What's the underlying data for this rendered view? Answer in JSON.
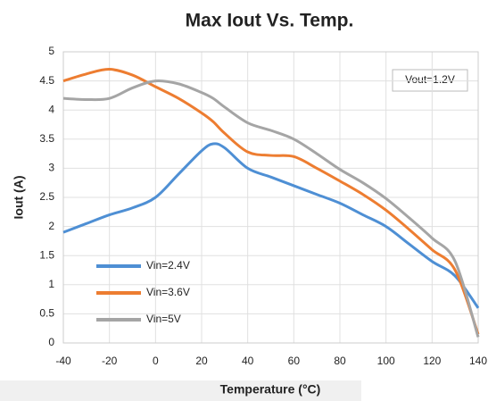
{
  "chart_data": {
    "type": "line",
    "title": "Max Iout Vs. Temp.",
    "x_label": "Temperature (°C)",
    "y_label": "Iout (A)",
    "annotation": "Vout=1.2V",
    "x": [
      -40,
      -30,
      -20,
      -10,
      0,
      10,
      20,
      25,
      30,
      40,
      50,
      60,
      70,
      80,
      90,
      100,
      110,
      120,
      130,
      140
    ],
    "series": [
      {
        "name": "Vin=2.4V",
        "color": "#4e8fd4",
        "values": [
          1.9,
          2.05,
          2.2,
          2.32,
          2.5,
          2.9,
          3.3,
          3.42,
          3.35,
          3.0,
          2.85,
          2.7,
          2.55,
          2.4,
          2.2,
          2.0,
          1.7,
          1.4,
          1.15,
          0.6
        ]
      },
      {
        "name": "Vin=3.6V",
        "color": "#ed7d31",
        "values": [
          4.5,
          4.62,
          4.7,
          4.6,
          4.4,
          4.2,
          3.95,
          3.8,
          3.6,
          3.28,
          3.22,
          3.2,
          3.0,
          2.78,
          2.55,
          2.28,
          1.95,
          1.6,
          1.25,
          0.15
        ]
      },
      {
        "name": "Vin=5V",
        "color": "#a5a5a5",
        "values": [
          4.2,
          4.18,
          4.2,
          4.38,
          4.5,
          4.45,
          4.3,
          4.2,
          4.05,
          3.78,
          3.65,
          3.5,
          3.25,
          2.98,
          2.75,
          2.48,
          2.15,
          1.8,
          1.4,
          0.1
        ]
      }
    ],
    "xlim": [
      -40,
      140
    ],
    "xticks": [
      -40,
      -20,
      0,
      20,
      40,
      60,
      80,
      100,
      120,
      140
    ],
    "ylim": [
      0,
      5
    ],
    "yticks": [
      0,
      0.5,
      1,
      1.5,
      2,
      2.5,
      3,
      3.5,
      4,
      4.5,
      5
    ],
    "grid": true,
    "legend": "lower left"
  }
}
